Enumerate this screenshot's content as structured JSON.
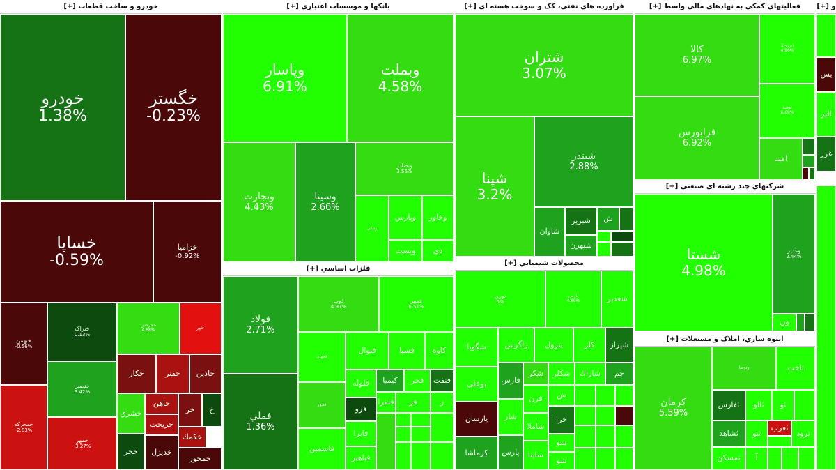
{
  "colors": {
    "strong_green": "#22ff00",
    "green": "#33dd11",
    "mid_green": "#1fa31f",
    "dark_green": "#157315",
    "deep_green": "#0d4a0d",
    "dark_red": "#4a0808",
    "red": "#cc1111",
    "light_red": "#e31010"
  },
  "sectors": [
    {
      "label": "خودرو و ساخت قطعات [+]"
    },
    {
      "label": "بانکها و موسسات اعتباري [+]"
    },
    {
      "label": "فراورده هاي نفتي، کک و سوخت هسته اي [+]"
    },
    {
      "label": "فعاليتهاي کمکي به نهادهاي مالي واسط [+]"
    },
    {
      "label": "و [+]"
    },
    {
      "label": "فلزات اساسي [+]"
    },
    {
      "label": "محصولات شيميايي [+]"
    },
    {
      "label": "شرکتهاي چند رشته اي صنعتي [+]"
    },
    {
      "label": "انبوه سازي، املاک و مستغلات [+]"
    }
  ],
  "tiles": [
    {
      "symbol": "خودرو",
      "change": "1.38%"
    },
    {
      "symbol": "خگستر",
      "change": "-0.23%"
    },
    {
      "symbol": "خساپا",
      "change": "-0.59%"
    },
    {
      "symbol": "خزاميا",
      "change": "-0.92%"
    },
    {
      "symbol": "خبهمن",
      "change": "-0.56%"
    },
    {
      "symbol": "ختراک",
      "change": "0.13%"
    },
    {
      "symbol": "خچرخش",
      "change": "4.88%"
    },
    {
      "symbol": "خاور",
      "change": ""
    },
    {
      "symbol": "خمحرکه",
      "change": "-2.83%"
    },
    {
      "symbol": "خنصیر",
      "change": "3.42%"
    },
    {
      "symbol": "خمهر",
      "change": "-3.27%"
    },
    {
      "symbol": "خكار",
      "change": ""
    },
    {
      "symbol": "خفنر",
      "change": ""
    },
    {
      "symbol": "خاذين",
      "change": ""
    },
    {
      "symbol": "خشرق",
      "change": ""
    },
    {
      "symbol": "خاهن",
      "change": ""
    },
    {
      "symbol": "خر",
      "change": ""
    },
    {
      "symbol": "خ",
      "change": ""
    },
    {
      "symbol": "خريخت",
      "change": ""
    },
    {
      "symbol": "خكمك",
      "change": ""
    },
    {
      "symbol": "خجر",
      "change": ""
    },
    {
      "symbol": "خديزل",
      "change": ""
    },
    {
      "symbol": "خمحور",
      "change": ""
    },
    {
      "symbol": "وپاسار",
      "change": "6.91%"
    },
    {
      "symbol": "وبملت",
      "change": "4.58%"
    },
    {
      "symbol": "وتجارت",
      "change": "4.43%"
    },
    {
      "symbol": "وسينا",
      "change": "2.66%"
    },
    {
      "symbol": "وبصادر",
      "change": "3.56%"
    },
    {
      "symbol": "وپارس",
      "change": ""
    },
    {
      "symbol": "وخاور",
      "change": ""
    },
    {
      "symbol": "ونيكي",
      "change": ""
    },
    {
      "symbol": "ويست",
      "change": ""
    },
    {
      "symbol": "دي",
      "change": ""
    },
    {
      "symbol": "فولاد",
      "change": "2.71%"
    },
    {
      "symbol": "فملي",
      "change": "1.36%"
    },
    {
      "symbol": "ذوب",
      "change": "4.97%"
    },
    {
      "symbol": "فمهر",
      "change": "6.51%"
    },
    {
      "symbol": "فجهان",
      "change": ""
    },
    {
      "symbol": "فنوال",
      "change": ""
    },
    {
      "symbol": "فسپا",
      "change": ""
    },
    {
      "symbol": "كاوه",
      "change": ""
    },
    {
      "symbol": "فخوز",
      "change": ""
    },
    {
      "symbol": "قلوله",
      "change": ""
    },
    {
      "symbol": "كيميا",
      "change": ""
    },
    {
      "symbol": "فجر",
      "change": ""
    },
    {
      "symbol": "فنفت",
      "change": ""
    },
    {
      "symbol": "فنقرا",
      "change": ""
    },
    {
      "symbol": "فرو",
      "change": ""
    },
    {
      "symbol": "فاسمين",
      "change": ""
    },
    {
      "symbol": "فابرا",
      "change": ""
    },
    {
      "symbol": "فباهنر",
      "change": ""
    },
    {
      "symbol": "فر",
      "change": ""
    },
    {
      "symbol": "ز",
      "change": ""
    },
    {
      "symbol": "شتران",
      "change": "3.07%"
    },
    {
      "symbol": "شپنا",
      "change": "3.2%"
    },
    {
      "symbol": "شبندر",
      "change": "2.88%"
    },
    {
      "symbol": "شاوان",
      "change": ""
    },
    {
      "symbol": "شبريز",
      "change": ""
    },
    {
      "symbol": "ش",
      "change": ""
    },
    {
      "symbol": "شبهرن",
      "change": ""
    },
    {
      "symbol": "كالا",
      "change": "6.97%"
    },
    {
      "symbol": "فرابورس",
      "change": "6.92%"
    },
    {
      "symbol": "انرژي3",
      "change": "4.96%"
    },
    {
      "symbol": "اوصتا",
      "change": "6.69%"
    },
    {
      "symbol": "اميد",
      "change": ""
    },
    {
      "symbol": "يس",
      "change": ""
    },
    {
      "symbol": "البر",
      "change": ""
    },
    {
      "symbol": "غزر",
      "change": ""
    },
    {
      "symbol": "نوري",
      "change": "5%"
    },
    {
      "symbol": "پارس",
      "change": "4.89%"
    },
    {
      "symbol": "شغدير",
      "change": ""
    },
    {
      "symbol": "شگويا",
      "change": ""
    },
    {
      "symbol": "زاگرس",
      "change": ""
    },
    {
      "symbol": "پترول",
      "change": ""
    },
    {
      "symbol": "كلر",
      "change": ""
    },
    {
      "symbol": "شيراز",
      "change": ""
    },
    {
      "symbol": "بوعلي",
      "change": ""
    },
    {
      "symbol": "فارس",
      "change": ""
    },
    {
      "symbol": "شكر",
      "change": ""
    },
    {
      "symbol": "شكلر",
      "change": ""
    },
    {
      "symbol": "شاراك",
      "change": ""
    },
    {
      "symbol": "جم",
      "change": ""
    },
    {
      "symbol": "پارسان",
      "change": ""
    },
    {
      "symbol": "شار",
      "change": ""
    },
    {
      "symbol": "قرن",
      "change": ""
    },
    {
      "symbol": "ش",
      "change": ""
    },
    {
      "symbol": "شاملا",
      "change": ""
    },
    {
      "symbol": "خرا",
      "change": ""
    },
    {
      "symbol": "كرماشا",
      "change": ""
    },
    {
      "symbol": "پارس",
      "change": ""
    },
    {
      "symbol": "شو",
      "change": ""
    },
    {
      "symbol": "ساينا",
      "change": ""
    },
    {
      "symbol": "شو",
      "change": ""
    },
    {
      "symbol": "شستا",
      "change": "4.98%"
    },
    {
      "symbol": "وغدير",
      "change": "2.44%"
    },
    {
      "symbol": "ون",
      "change": ""
    },
    {
      "symbol": "كرمان",
      "change": "5.59%"
    },
    {
      "symbol": "وتوصا",
      "change": ""
    },
    {
      "symbol": "ثاخت",
      "change": ""
    },
    {
      "symbol": "ثفارس",
      "change": ""
    },
    {
      "symbol": "ثالو",
      "change": ""
    },
    {
      "symbol": "ثو",
      "change": ""
    },
    {
      "symbol": "ثشاهد",
      "change": ""
    },
    {
      "symbol": "ثنو",
      "change": ""
    },
    {
      "symbol": "ثغرب",
      "change": ""
    },
    {
      "symbol": "ثرود",
      "change": ""
    },
    {
      "symbol": "ثمسكن",
      "change": ""
    },
    {
      "symbol": "آ",
      "change": ""
    }
  ]
}
